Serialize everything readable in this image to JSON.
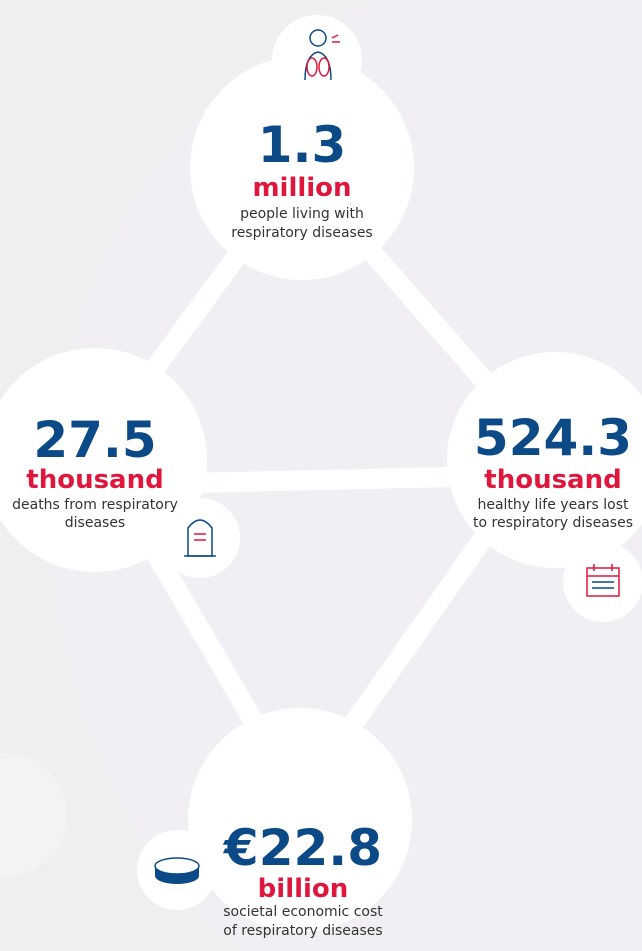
{
  "nodes": [
    {
      "value": "1.3",
      "unit": "million",
      "description": [
        "people living with",
        "respiratory diseases"
      ]
    },
    {
      "value": "27.5",
      "unit": "thousand",
      "description": [
        "deaths from respiratory",
        "diseases"
      ]
    },
    {
      "value": "524.3",
      "unit": "thousand",
      "description": [
        "healthy life years lost",
        "to respiratory diseases"
      ]
    },
    {
      "value": "€22.8",
      "unit": "billion",
      "description": [
        "societal economic cost",
        "of respiratory diseases"
      ]
    }
  ]
}
